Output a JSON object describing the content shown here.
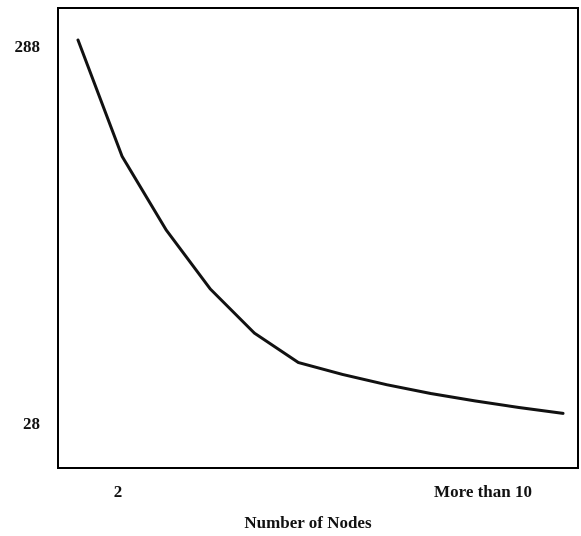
{
  "chart_data": {
    "type": "line",
    "title": "",
    "xlabel": "Number of Nodes",
    "ylabel": "",
    "grid": false,
    "legend": "none",
    "x_ticks": [
      "2",
      "More than 10"
    ],
    "y_ticks": [
      288,
      28
    ],
    "ylim": [
      28,
      288
    ],
    "x": [
      1,
      2,
      3,
      4,
      5,
      6,
      7,
      8,
      9,
      10,
      11,
      12
    ],
    "series": [
      {
        "values": [
          288,
          209,
          159,
          119,
          89,
          69,
          61,
          54,
          48,
          43,
          38.5,
          34.5
        ]
      }
    ],
    "line_color": "#111111",
    "axis_color": "#000000"
  }
}
